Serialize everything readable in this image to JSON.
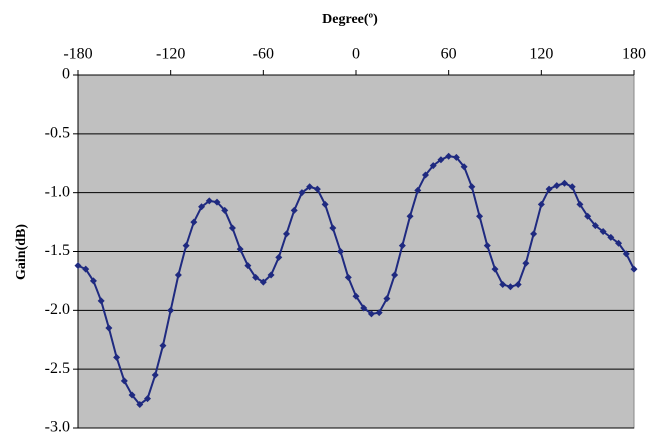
{
  "chart_data": {
    "type": "line",
    "title": "Degree(º)",
    "y_label": "Gain(dB)",
    "x": [
      -180,
      -175,
      -170,
      -165,
      -160,
      -155,
      -150,
      -145,
      -140,
      -135,
      -130,
      -125,
      -120,
      -115,
      -110,
      -105,
      -100,
      -95,
      -90,
      -85,
      -80,
      -75,
      -70,
      -65,
      -60,
      -55,
      -50,
      -45,
      -40,
      -35,
      -30,
      -25,
      -20,
      -15,
      -10,
      -5,
      0,
      5,
      10,
      15,
      20,
      25,
      30,
      35,
      40,
      45,
      50,
      55,
      60,
      65,
      70,
      75,
      80,
      85,
      90,
      95,
      100,
      105,
      110,
      115,
      120,
      125,
      130,
      135,
      140,
      145,
      150,
      155,
      160,
      165,
      170,
      175,
      180
    ],
    "series": [
      {
        "color": "#1f2a80",
        "values": [
          -1.62,
          -1.65,
          -1.75,
          -1.92,
          -2.15,
          -2.4,
          -2.6,
          -2.72,
          -2.8,
          -2.75,
          -2.55,
          -2.3,
          -2.0,
          -1.7,
          -1.45,
          -1.25,
          -1.12,
          -1.07,
          -1.08,
          -1.15,
          -1.3,
          -1.48,
          -1.62,
          -1.72,
          -1.76,
          -1.7,
          -1.55,
          -1.35,
          -1.15,
          -1.0,
          -0.95,
          -0.97,
          -1.1,
          -1.3,
          -1.5,
          -1.72,
          -1.88,
          -1.98,
          -2.03,
          -2.02,
          -1.9,
          -1.7,
          -1.45,
          -1.2,
          -0.98,
          -0.85,
          -0.77,
          -0.72,
          -0.69,
          -0.7,
          -0.78,
          -0.95,
          -1.2,
          -1.45,
          -1.65,
          -1.78,
          -1.8,
          -1.78,
          -1.6,
          -1.35,
          -1.1,
          -0.97,
          -0.94,
          -0.92,
          -0.95,
          -1.1,
          -1.2,
          -1.28,
          -1.33,
          -1.38,
          -1.43,
          -1.52,
          -1.65
        ]
      }
    ],
    "xlim": [
      -180,
      180
    ],
    "xticks": [
      -180,
      -120,
      -60,
      0,
      60,
      120,
      180
    ],
    "ylim": [
      -3,
      0
    ],
    "yticks": [
      0,
      -0.5,
      {
        "value": -1,
        "label": "-1.0"
      },
      -1.5,
      {
        "value": -2,
        "label": "-2.0"
      },
      -2.5,
      {
        "value": -3,
        "label": "-3.0"
      }
    ],
    "grid": true,
    "plot_background": "#c0c0c0"
  }
}
